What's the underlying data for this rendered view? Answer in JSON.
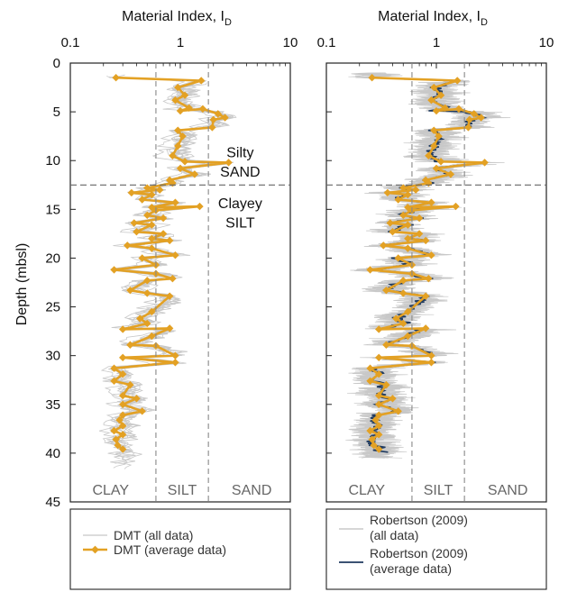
{
  "chart_data": [
    {
      "type": "line",
      "xlabel_main": "Material Index, I",
      "xlabel_sub": "D",
      "ylabel": "Depth (mbsl)",
      "xscale": "log",
      "xlim": [
        0.1,
        10
      ],
      "ylim": [
        0,
        45
      ],
      "xticks": [
        "0.1",
        "1",
        "10"
      ],
      "yticks": [
        "0",
        "5",
        "10",
        "15",
        "20",
        "25",
        "30",
        "35",
        "40",
        "45"
      ],
      "zone_boundaries": [
        0.6,
        1.8
      ],
      "zones": [
        "CLAY",
        "SILT",
        "SAND"
      ],
      "layer_boundary_depth": 12.5,
      "layer_labels": [
        {
          "text": "Silty",
          "x": 3.5,
          "y": 9.2
        },
        {
          "text": "SAND",
          "x": 3.5,
          "y": 11.2
        },
        {
          "text": "Clayey",
          "x": 3.5,
          "y": 14.4
        },
        {
          "text": "SILT",
          "x": 3.5,
          "y": 16.4
        }
      ],
      "legend": {
        "placement": "bottom",
        "entries": [
          "DMT (all data)",
          "DMT (average data)"
        ]
      },
      "colors": {
        "all": "#c8c8c8",
        "average": "#e3a124"
      },
      "series": [
        {
          "name": "DMT (average data)",
          "points": [
            [
              0.26,
              1.5
            ],
            [
              1.55,
              1.8
            ],
            [
              0.95,
              2.5
            ],
            [
              1.1,
              3.3
            ],
            [
              0.9,
              3.8
            ],
            [
              1.2,
              4.6
            ],
            [
              1.0,
              4.9
            ],
            [
              1.6,
              4.7
            ],
            [
              2.2,
              5.2
            ],
            [
              2.55,
              5.6
            ],
            [
              2.0,
              5.8
            ],
            [
              1.95,
              6.6
            ],
            [
              0.95,
              6.9
            ],
            [
              1.05,
              7.5
            ],
            [
              0.95,
              8.5
            ],
            [
              0.85,
              9.5
            ],
            [
              1.1,
              10.1
            ],
            [
              2.75,
              10.2
            ],
            [
              1.0,
              10.8
            ],
            [
              1.35,
              11.4
            ],
            [
              0.8,
              12.0
            ],
            [
              0.85,
              12.3
            ],
            [
              0.5,
              12.8
            ],
            [
              0.65,
              13.0
            ],
            [
              0.36,
              13.3
            ],
            [
              0.55,
              13.5
            ],
            [
              0.45,
              14.0
            ],
            [
              0.9,
              14.3
            ],
            [
              0.55,
              14.8
            ],
            [
              1.5,
              14.7
            ],
            [
              0.6,
              15.1
            ],
            [
              0.5,
              15.6
            ],
            [
              0.7,
              15.9
            ],
            [
              0.38,
              16.4
            ],
            [
              0.55,
              16.6
            ],
            [
              0.4,
              17.3
            ],
            [
              0.7,
              17.5
            ],
            [
              0.55,
              18.0
            ],
            [
              0.8,
              18.2
            ],
            [
              0.33,
              18.7
            ],
            [
              0.55,
              19.0
            ],
            [
              0.9,
              19.7
            ],
            [
              0.45,
              20.0
            ],
            [
              0.6,
              20.7
            ],
            [
              0.25,
              21.2
            ],
            [
              0.6,
              21.6
            ],
            [
              0.85,
              22.1
            ],
            [
              0.5,
              22.3
            ],
            [
              0.35,
              23.3
            ],
            [
              0.5,
              23.6
            ],
            [
              0.8,
              23.9
            ],
            [
              0.55,
              25.5
            ],
            [
              0.43,
              26.2
            ],
            [
              0.5,
              26.7
            ],
            [
              0.3,
              27.3
            ],
            [
              0.8,
              27.2
            ],
            [
              0.55,
              28.0
            ],
            [
              0.35,
              28.9
            ],
            [
              0.6,
              29.0
            ],
            [
              0.9,
              30.0
            ],
            [
              0.3,
              30.2
            ],
            [
              0.9,
              30.7
            ],
            [
              0.25,
              31.3
            ],
            [
              0.3,
              31.9
            ],
            [
              0.25,
              32.6
            ],
            [
              0.35,
              33.0
            ],
            [
              0.3,
              34.1
            ],
            [
              0.4,
              34.4
            ],
            [
              0.3,
              35.0
            ],
            [
              0.45,
              35.7
            ],
            [
              0.3,
              36.1
            ],
            [
              0.28,
              36.6
            ],
            [
              0.3,
              37.2
            ],
            [
              0.25,
              37.7
            ],
            [
              0.3,
              38.1
            ],
            [
              0.26,
              38.6
            ],
            [
              0.27,
              39.2
            ],
            [
              0.3,
              39.6
            ]
          ]
        }
      ]
    },
    {
      "type": "line",
      "xlabel_main": "Material Index, I",
      "xlabel_sub": "D",
      "xscale": "log",
      "xlim": [
        0.1,
        10
      ],
      "ylim": [
        0,
        45
      ],
      "xticks": [
        "0.1",
        "1",
        "10"
      ],
      "zone_boundaries": [
        0.6,
        1.8
      ],
      "zones": [
        "CLAY",
        "SILT",
        "SAND"
      ],
      "layer_boundary_depth": 12.5,
      "legend": {
        "placement": "bottom",
        "entries": [
          "Robertson (2009)",
          "(all data)",
          "Robertson (2009)",
          "(average data)"
        ]
      },
      "colors": {
        "all": "#c8c8c8",
        "average": "#1f3a5f",
        "dmt": "#e3a124"
      }
    }
  ]
}
